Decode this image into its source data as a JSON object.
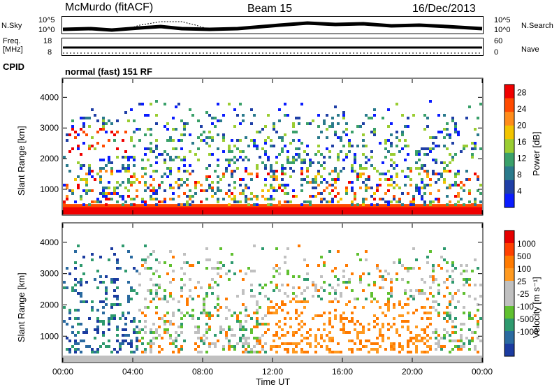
{
  "header": {
    "site": "McMurdo (fitACF)",
    "beam": "Beam 15",
    "date": "16/Dec/2013"
  },
  "top_panels": {
    "nsky_label": "N.Sky",
    "nsky_ticks": [
      "10^5",
      "10^0"
    ],
    "nsearch_label": "N.Search",
    "nsearch_ticks": [
      "10^5",
      "10^0"
    ],
    "freq_label": "Freq.",
    "freq_unit": "[MHz]",
    "freq_ticks": [
      "18",
      "8"
    ],
    "nave_label": "Nave",
    "nave_ticks": [
      "60",
      "0"
    ],
    "cpid_label": "CPID",
    "cpid_value": "normal (fast) 151 RF"
  },
  "colors": {
    "power": [
      "#0a1cff",
      "#1f3fa6",
      "#2a7a8c",
      "#3aa06a",
      "#9acd32",
      "#f2c400",
      "#ff8c1a",
      "#ff4a00",
      "#f00000"
    ],
    "velocity": [
      "#e60000",
      "#ff4000",
      "#ff7a00",
      "#ff9a20",
      "#c0c0c0",
      "#c0c0c0",
      "#60c030",
      "#2e9a6e",
      "#2a6aa0",
      "#1b3ba0"
    ]
  },
  "chart_data": [
    {
      "type": "heatmap",
      "title": "Power",
      "xlabel": "",
      "ylabel": "Slant Range [km]",
      "x_ticks": [
        "00:00",
        "04:00",
        "08:00",
        "12:00",
        "16:00",
        "20:00",
        "00:00"
      ],
      "y_ticks": [
        1000,
        2000,
        3000,
        4000
      ],
      "ylim": [
        180,
        4600
      ],
      "colorbar": {
        "label": "Power [dB]",
        "ticks": [
          4,
          8,
          12,
          16,
          20,
          24,
          28
        ],
        "range": [
          0,
          30
        ]
      }
    },
    {
      "type": "heatmap",
      "title": "Velocity",
      "xlabel": "Time UT",
      "ylabel": "Slant Range [km]",
      "x_ticks": [
        "00:00",
        "04:00",
        "08:00",
        "12:00",
        "16:00",
        "20:00",
        "00:00"
      ],
      "y_ticks": [
        1000,
        2000,
        3000,
        4000
      ],
      "ylim": [
        180,
        4600
      ],
      "colorbar": {
        "label": "Velocity [m s⁻¹]",
        "ticks": [
          1000,
          500,
          100,
          25,
          -25,
          -100,
          -500,
          -1000
        ]
      }
    }
  ]
}
